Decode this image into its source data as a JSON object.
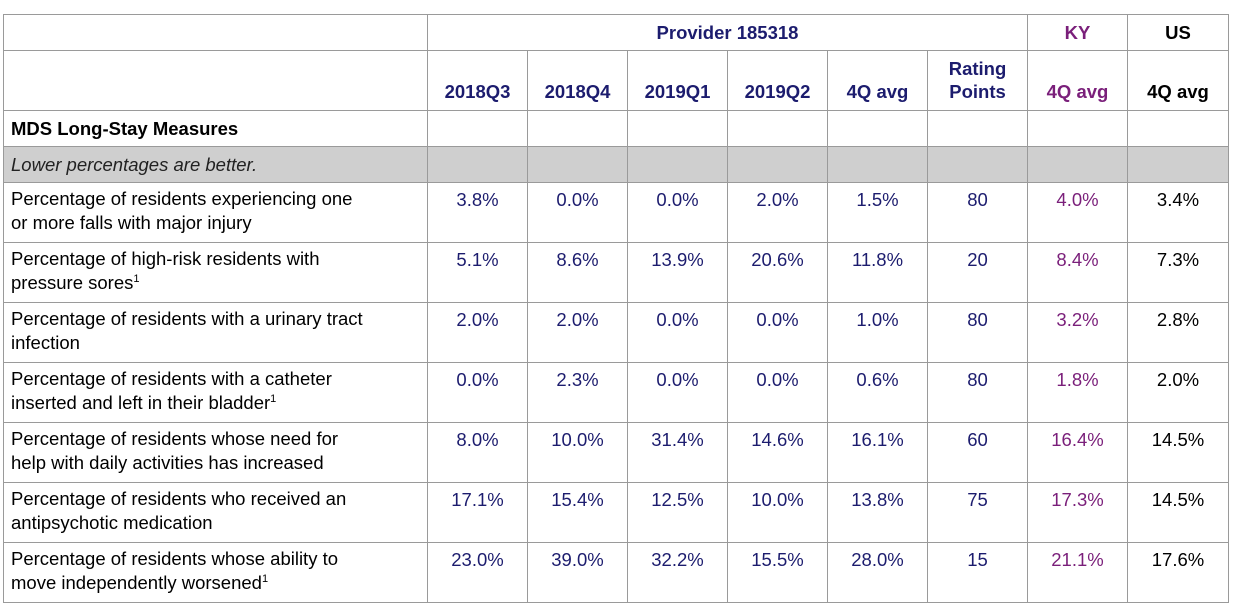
{
  "header": {
    "provider": "Provider 185318",
    "ky": "KY",
    "us": "US"
  },
  "columns": {
    "q1": "2018Q3",
    "q2": "2018Q4",
    "q3": "2019Q1",
    "q4": "2019Q2",
    "avg": "4Q avg",
    "rating_line1": "Rating",
    "rating_line2": "Points",
    "ky_avg": "4Q avg",
    "us_avg": "4Q avg"
  },
  "section_title": "MDS Long-Stay Measures",
  "note": "Lower percentages are better.",
  "rows": [
    {
      "label_a": "Percentage of residents experiencing one",
      "label_b": "or more falls with major injury",
      "sup": "",
      "values": [
        "3.8%",
        "0.0%",
        "0.0%",
        "2.0%",
        "1.5%",
        "80",
        "4.0%",
        "3.4%"
      ]
    },
    {
      "label_a": "Percentage of high-risk residents with",
      "label_b": "pressure sores",
      "sup": "1",
      "values": [
        "5.1%",
        "8.6%",
        "13.9%",
        "20.6%",
        "11.8%",
        "20",
        "8.4%",
        "7.3%"
      ]
    },
    {
      "label_a": "Percentage of residents with a urinary tract",
      "label_b": "infection",
      "sup": "",
      "values": [
        "2.0%",
        "2.0%",
        "0.0%",
        "0.0%",
        "1.0%",
        "80",
        "3.2%",
        "2.8%"
      ]
    },
    {
      "label_a": "Percentage of residents with a catheter",
      "label_b": "inserted and left in their bladder",
      "sup": "1",
      "values": [
        "0.0%",
        "2.3%",
        "0.0%",
        "0.0%",
        "0.6%",
        "80",
        "1.8%",
        "2.0%"
      ]
    },
    {
      "label_a": "Percentage of residents whose need for",
      "label_b": "help with daily activities has increased",
      "sup": "",
      "values": [
        "8.0%",
        "10.0%",
        "31.4%",
        "14.6%",
        "16.1%",
        "60",
        "16.4%",
        "14.5%"
      ]
    },
    {
      "label_a": "Percentage of residents who received an",
      "label_b": "antipsychotic medication",
      "sup": "",
      "values": [
        "17.1%",
        "15.4%",
        "12.5%",
        "10.0%",
        "13.8%",
        "75",
        "17.3%",
        "14.5%"
      ]
    },
    {
      "label_a": "Percentage of residents whose ability to",
      "label_b": "move independently worsened",
      "sup": "1",
      "values": [
        "23.0%",
        "39.0%",
        "32.2%",
        "15.5%",
        "28.0%",
        "15",
        "21.1%",
        "17.6%"
      ]
    }
  ]
}
